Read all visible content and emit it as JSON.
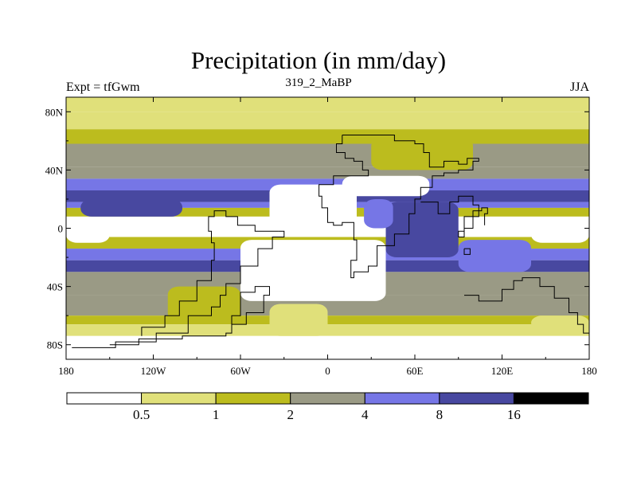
{
  "chart_data": {
    "type": "heatmap",
    "title": "Precipitation (in mm/day)",
    "left_label": "Expt = tfGwm",
    "center_label": "319_2_MaBP",
    "right_label": "JJA",
    "x_ticks": [
      {
        "lon": -180,
        "label": "180"
      },
      {
        "lon": -120,
        "label": "120W"
      },
      {
        "lon": -60,
        "label": "60W"
      },
      {
        "lon": 0,
        "label": "0"
      },
      {
        "lon": 60,
        "label": "60E"
      },
      {
        "lon": 120,
        "label": "120E"
      },
      {
        "lon": 180,
        "label": "180"
      }
    ],
    "y_ticks": [
      {
        "lat": 80,
        "label": "80N"
      },
      {
        "lat": 40,
        "label": "40N"
      },
      {
        "lat": 0,
        "label": "0"
      },
      {
        "lat": -40,
        "label": "40S"
      },
      {
        "lat": -80,
        "label": "80S"
      }
    ],
    "xlim": [
      -180,
      180
    ],
    "ylim": [
      -90,
      90
    ],
    "levels": [
      "0.5",
      "1",
      "2",
      "4",
      "8",
      "16"
    ],
    "colors": [
      "#ffffff",
      "#e0e07a",
      "#bcbc1e",
      "#9a9a85",
      "#7676e6",
      "#4848a0",
      "#000000"
    ],
    "zonal_bands": [
      {
        "lat": [
          80,
          90
        ],
        "class": 1
      },
      {
        "lat": [
          68,
          80
        ],
        "class": 1
      },
      {
        "lat": [
          58,
          68
        ],
        "class": 2
      },
      {
        "lat": [
          42,
          58
        ],
        "class": 3
      },
      {
        "lat": [
          34,
          42
        ],
        "class": 3
      },
      {
        "lat": [
          26,
          34
        ],
        "class": 4
      },
      {
        "lat": [
          18,
          26
        ],
        "class": 5
      },
      {
        "lat": [
          14,
          18
        ],
        "class": 4
      },
      {
        "lat": [
          8,
          14
        ],
        "class": 2
      },
      {
        "lat": [
          -6,
          8
        ],
        "class": 0
      },
      {
        "lat": [
          -14,
          -6
        ],
        "class": 2
      },
      {
        "lat": [
          -22,
          -14
        ],
        "class": 4
      },
      {
        "lat": [
          -30,
          -22
        ],
        "class": 5
      },
      {
        "lat": [
          -46,
          -30
        ],
        "class": 3
      },
      {
        "lat": [
          -60,
          -46
        ],
        "class": 3
      },
      {
        "lat": [
          -66,
          -60
        ],
        "class": 2
      },
      {
        "lat": [
          -74,
          -66
        ],
        "class": 1
      },
      {
        "lat": [
          -90,
          -74
        ],
        "class": 0
      }
    ],
    "patches": [
      {
        "lon": [
          -60,
          40
        ],
        "lat": [
          -50,
          -8
        ],
        "class": 0
      },
      {
        "lon": [
          -40,
          20
        ],
        "lat": [
          0,
          30
        ],
        "class": 0
      },
      {
        "lon": [
          10,
          70
        ],
        "lat": [
          22,
          36
        ],
        "class": 0
      },
      {
        "lon": [
          40,
          90
        ],
        "lat": [
          -20,
          18
        ],
        "class": 5
      },
      {
        "lon": [
          25,
          45
        ],
        "lat": [
          0,
          20
        ],
        "class": 4
      },
      {
        "lon": [
          30,
          100
        ],
        "lat": [
          40,
          62
        ],
        "class": 2
      },
      {
        "lon": [
          -170,
          -100
        ],
        "lat": [
          8,
          20
        ],
        "class": 5
      },
      {
        "lon": [
          -110,
          -60
        ],
        "lat": [
          -64,
          -40
        ],
        "class": 2
      },
      {
        "lon": [
          -40,
          0
        ],
        "lat": [
          -74,
          -52
        ],
        "class": 1
      },
      {
        "lon": [
          90,
          140
        ],
        "lat": [
          -30,
          -8
        ],
        "class": 4
      },
      {
        "lon": [
          140,
          180
        ],
        "lat": [
          -10,
          4
        ],
        "class": 0
      },
      {
        "lon": [
          -180,
          -150
        ],
        "lat": [
          -10,
          4
        ],
        "class": 0
      },
      {
        "lon": [
          140,
          180
        ],
        "lat": [
          -70,
          -60
        ],
        "class": 1
      }
    ],
    "coastlines": [
      {
        "name": "afro-eurasia",
        "lonlat": [
          [
            10,
            64
          ],
          [
            34,
            64
          ],
          [
            46,
            60
          ],
          [
            60,
            58
          ],
          [
            66,
            52
          ],
          [
            70,
            42
          ],
          [
            80,
            46
          ],
          [
            90,
            44
          ],
          [
            96,
            48
          ],
          [
            104,
            46
          ],
          [
            100,
            40
          ],
          [
            90,
            38
          ],
          [
            80,
            36
          ],
          [
            72,
            28
          ],
          [
            64,
            20
          ],
          [
            60,
            10
          ],
          [
            56,
            -4
          ],
          [
            46,
            -12
          ],
          [
            34,
            -26
          ],
          [
            28,
            -30
          ],
          [
            18,
            -34
          ],
          [
            16,
            -22
          ],
          [
            20,
            -8
          ],
          [
            18,
            4
          ],
          [
            10,
            2
          ],
          [
            4,
            4
          ],
          [
            0,
            14
          ],
          [
            -4,
            22
          ],
          [
            -6,
            30
          ],
          [
            4,
            36
          ],
          [
            20,
            36
          ],
          [
            28,
            40
          ],
          [
            24,
            46
          ],
          [
            18,
            48
          ],
          [
            12,
            52
          ],
          [
            6,
            58
          ],
          [
            10,
            64
          ]
        ]
      },
      {
        "name": "india-se-asia",
        "lonlat": [
          [
            64,
            18
          ],
          [
            76,
            10
          ],
          [
            84,
            18
          ],
          [
            90,
            22
          ],
          [
            100,
            16
          ],
          [
            104,
            8
          ],
          [
            100,
            0
          ],
          [
            94,
            -6
          ],
          [
            90,
            -2
          ],
          [
            94,
            8
          ],
          [
            100,
            12
          ],
          [
            106,
            14
          ],
          [
            110,
            10
          ],
          [
            108,
            2
          ]
        ]
      },
      {
        "name": "south-america",
        "lonlat": [
          [
            -34,
            -2
          ],
          [
            -30,
            -6
          ],
          [
            -38,
            -14
          ],
          [
            -48,
            -26
          ],
          [
            -60,
            -38
          ],
          [
            -70,
            -46
          ],
          [
            -74,
            -54
          ],
          [
            -80,
            -60
          ],
          [
            -96,
            -72
          ],
          [
            -118,
            -78
          ],
          [
            -146,
            -82
          ],
          [
            -176,
            -82
          ]
        ]
      },
      {
        "name": "south-america-west",
        "lonlat": [
          [
            -34,
            -2
          ],
          [
            -50,
            2
          ],
          [
            -62,
            8
          ],
          [
            -70,
            12
          ],
          [
            -78,
            8
          ],
          [
            -82,
            -2
          ],
          [
            -80,
            -10
          ],
          [
            -78,
            -22
          ],
          [
            -80,
            -36
          ],
          [
            -90,
            -50
          ],
          [
            -102,
            -60
          ],
          [
            -112,
            -68
          ],
          [
            -128,
            -74
          ]
        ]
      },
      {
        "name": "australia-antarctica",
        "lonlat": [
          [
            94,
            -46
          ],
          [
            104,
            -50
          ],
          [
            120,
            -42
          ],
          [
            128,
            -36
          ],
          [
            134,
            -34
          ],
          [
            146,
            -40
          ],
          [
            156,
            -48
          ],
          [
            166,
            -58
          ],
          [
            172,
            -66
          ],
          [
            176,
            -72
          ],
          [
            180,
            -78
          ]
        ]
      },
      {
        "name": "antarctic-interior",
        "lonlat": [
          [
            -150,
            -80
          ],
          [
            -130,
            -76
          ],
          [
            -100,
            -74
          ],
          [
            -70,
            -72
          ],
          [
            -66,
            -60
          ],
          [
            -60,
            -44
          ],
          [
            -50,
            -40
          ],
          [
            -40,
            -46
          ],
          [
            -44,
            -58
          ],
          [
            -56,
            -66
          ],
          [
            -66,
            -72
          ]
        ]
      },
      {
        "name": "small-island",
        "lonlat": [
          [
            94,
            -14
          ],
          [
            98,
            -14
          ],
          [
            98,
            -18
          ],
          [
            94,
            -18
          ],
          [
            94,
            -14
          ]
        ]
      }
    ]
  }
}
